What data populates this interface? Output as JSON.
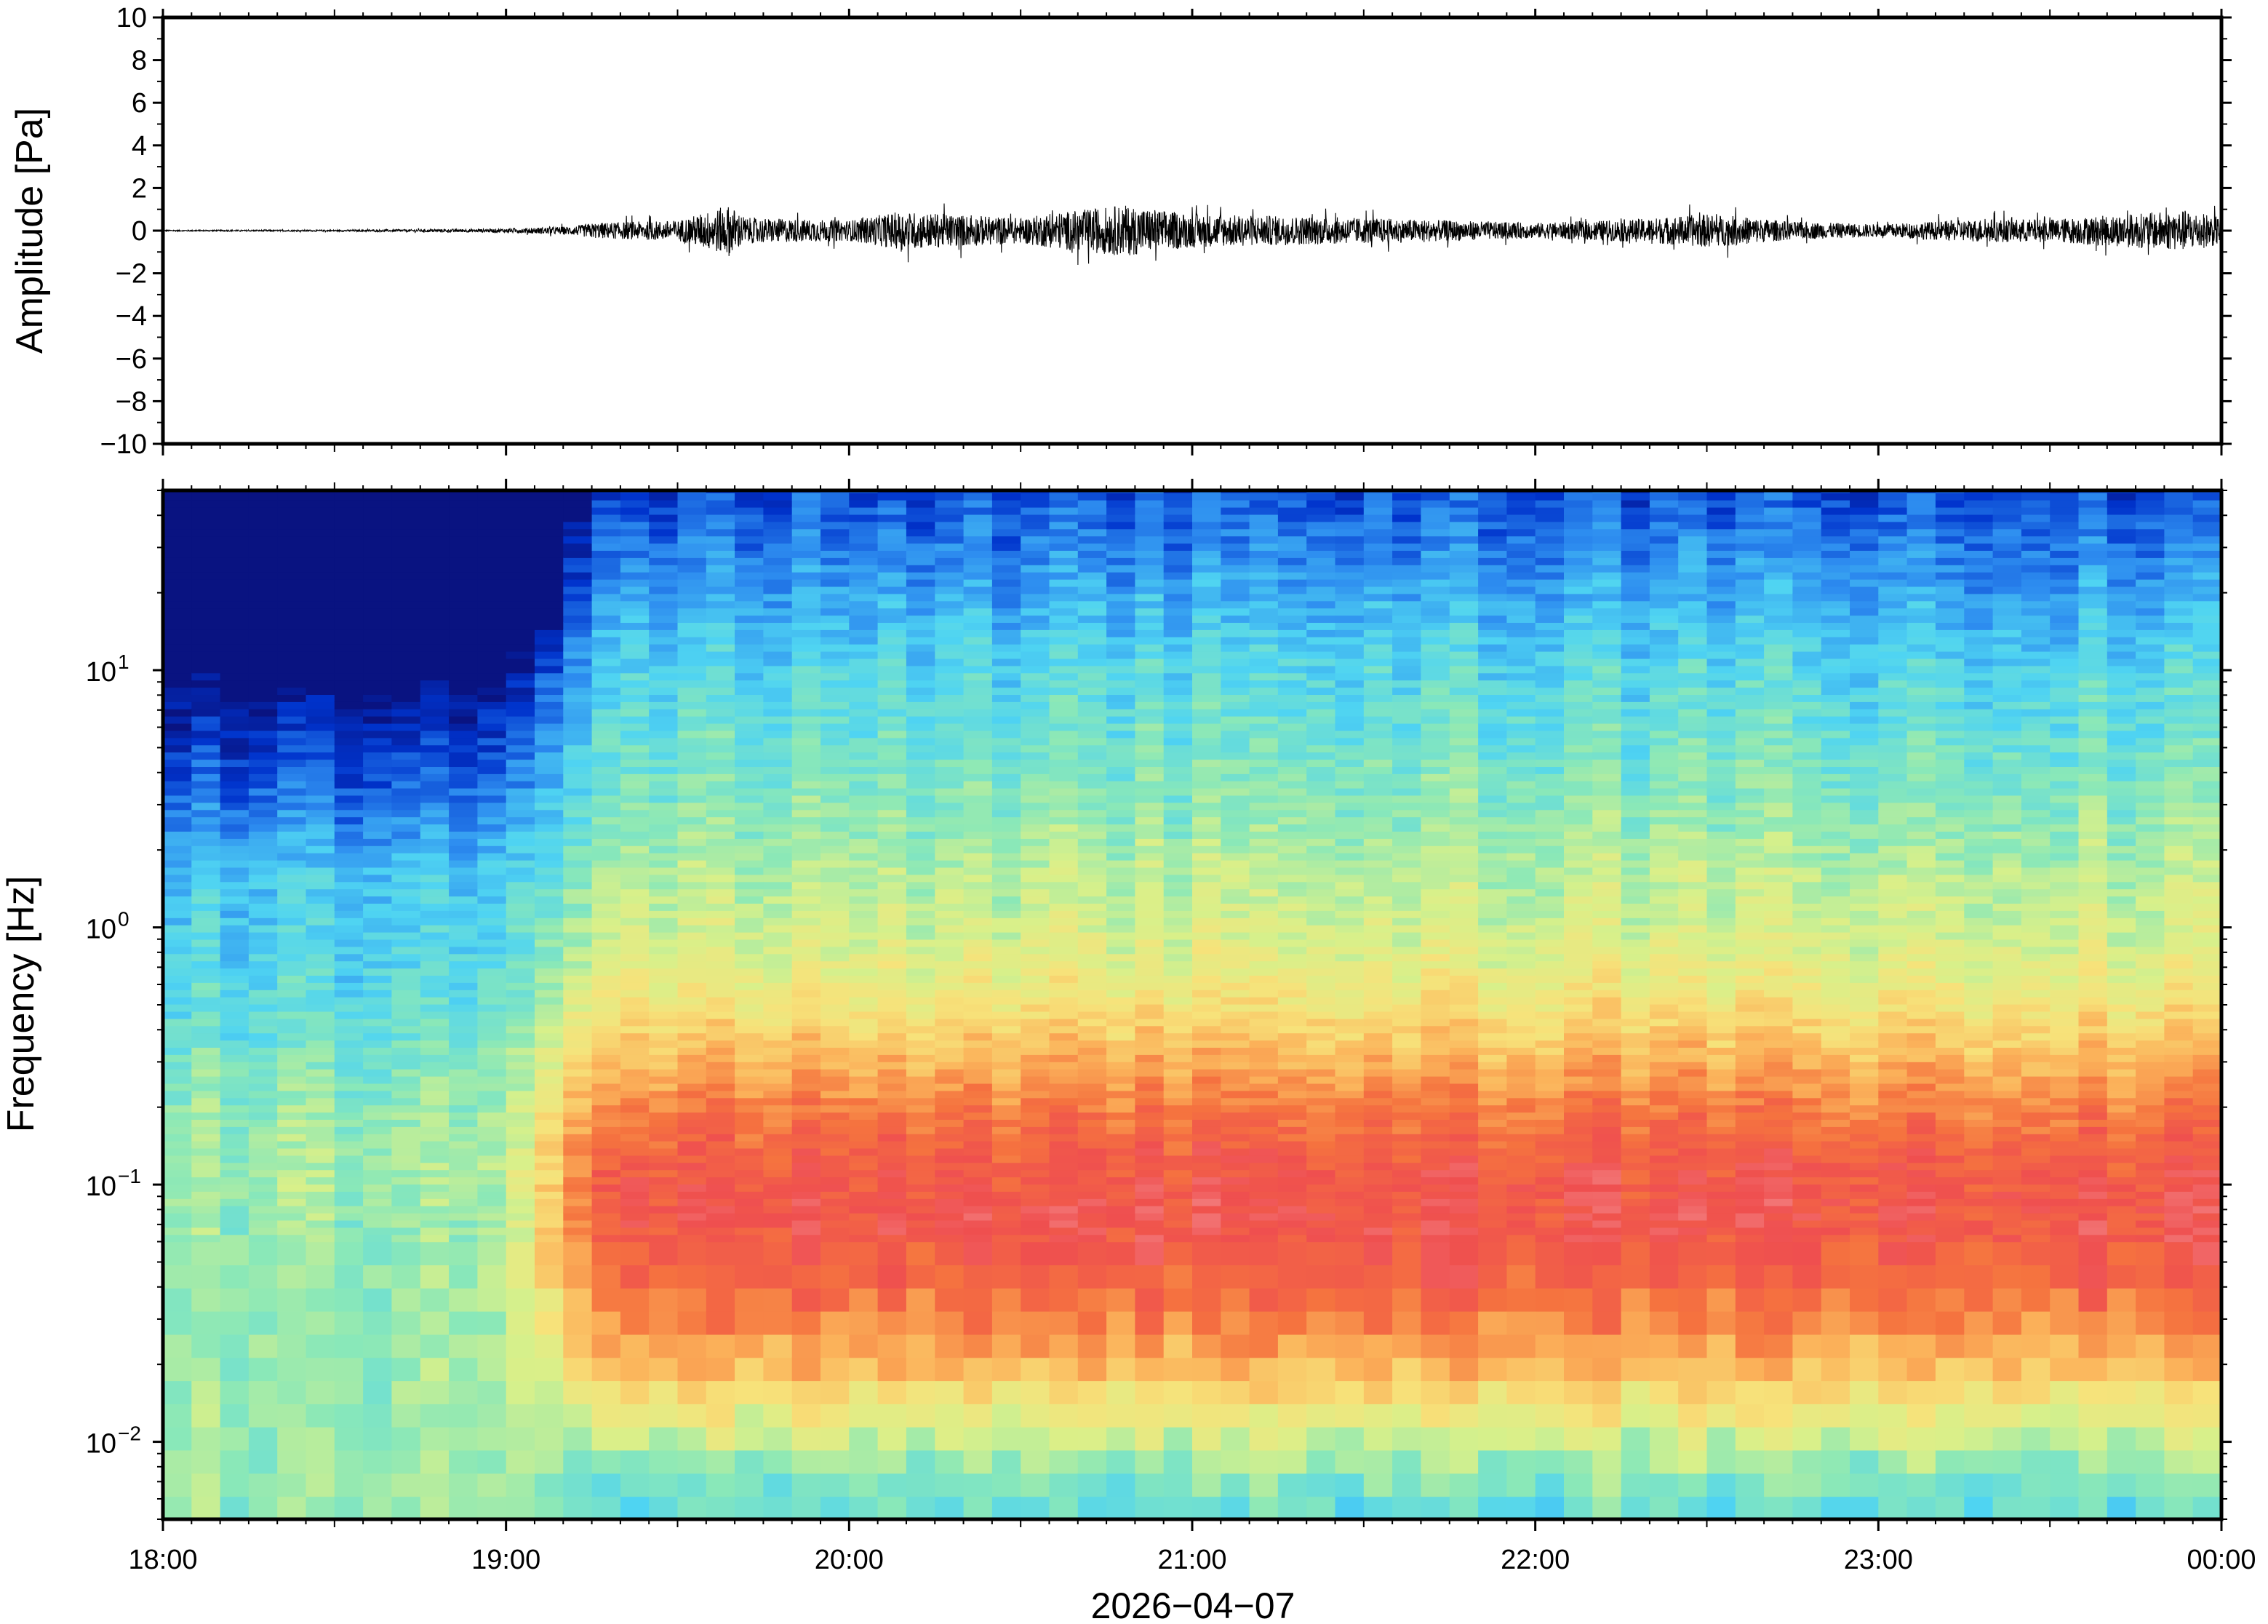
{
  "chart_data": [
    {
      "type": "line",
      "panel": "waveform",
      "ylabel": "Amplitude [Pa]",
      "ylim": [
        -10,
        10
      ],
      "yticks": [
        10,
        8,
        6,
        4,
        2,
        0,
        -2,
        -4,
        -6,
        -8,
        -10
      ],
      "ytick_labels": [
        "10",
        "8",
        "6",
        "4",
        "2",
        "0",
        "−2",
        "−4",
        "−6",
        "−8",
        "−10"
      ],
      "xlim": [
        "18:00",
        "00:00"
      ],
      "series": [
        {
          "color": "#000000",
          "envelope_hours": [
            18.0,
            18.5,
            19.0,
            19.2,
            19.25,
            19.5,
            19.65,
            19.7,
            20.0,
            20.15,
            20.5,
            20.6,
            20.8,
            21.0,
            21.5,
            22.0,
            22.3,
            22.5,
            22.6,
            22.75,
            23.0,
            23.3,
            23.5,
            23.9,
            24.0
          ],
          "envelope_amplitude": [
            0.05,
            0.06,
            0.15,
            0.35,
            0.6,
            0.8,
            2.0,
            1.0,
            0.8,
            1.5,
            1.0,
            1.4,
            2.0,
            1.3,
            1.0,
            0.6,
            0.9,
            1.3,
            1.1,
            0.7,
            0.5,
            0.9,
            0.9,
            1.6,
            1.1
          ]
        }
      ]
    },
    {
      "type": "heatmap",
      "panel": "spectrogram",
      "ylabel": "Frequency [Hz]",
      "yscale": "log",
      "ylim": [
        0.005,
        50
      ],
      "ytick_labels": [
        {
          "value": 0.01,
          "base": "10",
          "exp": "−2"
        },
        {
          "value": 0.1,
          "base": "10",
          "exp": "−1"
        },
        {
          "value": 1,
          "base": "10",
          "exp": "0"
        },
        {
          "value": 10,
          "base": "10",
          "exp": "1"
        }
      ],
      "xlabel": "2026−04−07",
      "xticks": [
        "18:00",
        "19:00",
        "20:00",
        "21:00",
        "22:00",
        "23:00",
        "00:00"
      ],
      "colormap": "jet",
      "colors": [
        "#0b0b6e",
        "#0033cc",
        "#2e8ef0",
        "#4fd4f2",
        "#8ae8b8",
        "#d8f08a",
        "#f7e27a",
        "#fbb25a",
        "#f5733f",
        "#ef4f4f",
        "#f48b8b"
      ]
    }
  ]
}
